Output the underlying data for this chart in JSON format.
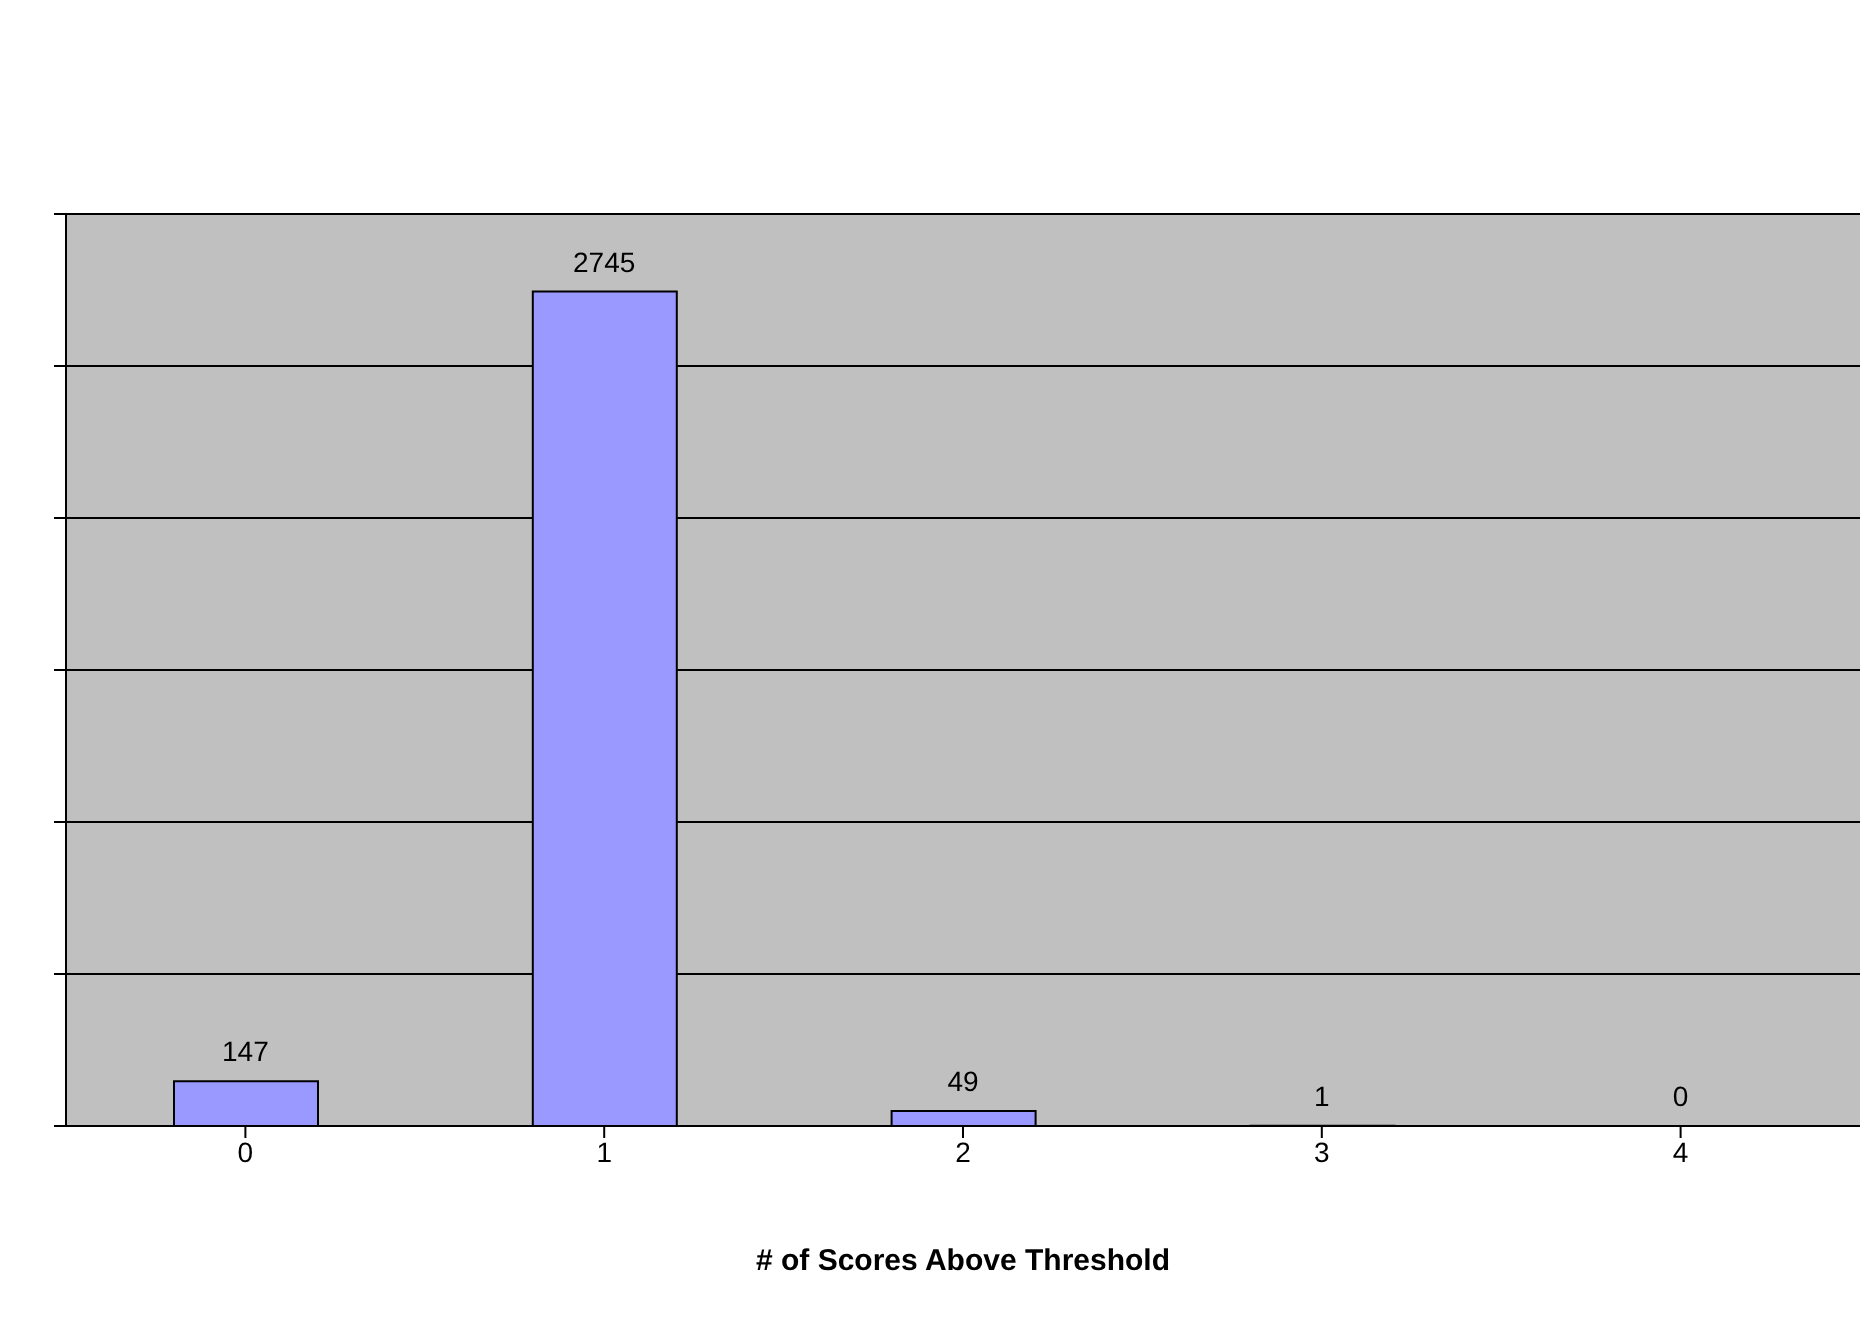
{
  "chart_data": {
    "type": "bar",
    "xlabel": "# of Scores Above Threshold",
    "categories": [
      "0",
      "1",
      "2",
      "3",
      "4"
    ],
    "values": [
      147,
      2745,
      49,
      1,
      0
    ],
    "color": "#9999ff",
    "ylim": [
      0,
      3000
    ],
    "yticks": [
      {
        "value": 0,
        "label": null
      },
      {
        "value": 500,
        "label": null
      },
      {
        "value": 1000,
        "label": null
      },
      {
        "value": 1500,
        "label": null
      },
      {
        "value": 2000,
        "label": null
      },
      {
        "value": 2500,
        "label": null
      },
      {
        "value": 3000,
        "label": null
      }
    ],
    "tick_labels": "x",
    "grid": "y",
    "data_labels": true
  }
}
